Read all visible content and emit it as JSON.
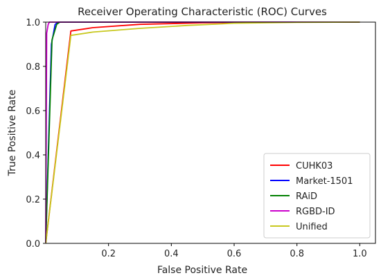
{
  "chart_data": {
    "type": "line",
    "title": "Receiver Operating Characteristic (ROC) Curves",
    "xlabel": "False Positive Rate",
    "ylabel": "True Positive Rate",
    "xlim": [
      0,
      1.05
    ],
    "ylim": [
      0,
      1.0
    ],
    "xticks": [
      0.2,
      0.4,
      0.6,
      0.8,
      1.0
    ],
    "xtick_labels": [
      "0.2",
      "0.4",
      "0.6",
      "0.8",
      "1.0"
    ],
    "yticks": [
      0,
      0.2,
      0.4,
      0.6,
      0.8,
      1.0
    ],
    "ytick_labels": [
      "0.0",
      "0.2",
      "0.4",
      "0.6",
      "0.8",
      "1.0"
    ],
    "grid": false,
    "legend_position": "lower-right",
    "series": [
      {
        "name": "CUHK03",
        "color": "#ff0000",
        "x": [
          0,
          0.08,
          0.15,
          0.3,
          0.5,
          0.7,
          1.0
        ],
        "y": [
          0,
          0.96,
          0.975,
          0.99,
          0.997,
          1.0,
          1.0
        ]
      },
      {
        "name": "Market-1501",
        "color": "#0000ff",
        "x": [
          0,
          0.018,
          0.03,
          0.04,
          1.0
        ],
        "y": [
          0,
          0.9,
          0.99,
          1.0,
          1.0
        ]
      },
      {
        "name": "RAiD",
        "color": "#008000",
        "x": [
          0,
          0.02,
          0.035,
          0.045,
          1.0
        ],
        "y": [
          0,
          0.92,
          0.99,
          1.0,
          1.0
        ]
      },
      {
        "name": "RGBD-ID",
        "color": "#cc00cc",
        "x": [
          0,
          0.003,
          0.008,
          0.012,
          1.0
        ],
        "y": [
          0,
          0.95,
          0.99,
          1.0,
          1.0
        ]
      },
      {
        "name": "Unified",
        "color": "#c8c81e",
        "x": [
          0,
          0.08,
          0.15,
          0.3,
          0.45,
          0.6,
          0.8,
          1.0
        ],
        "y": [
          0,
          0.94,
          0.955,
          0.972,
          0.985,
          0.995,
          0.999,
          1.0
        ]
      }
    ]
  }
}
